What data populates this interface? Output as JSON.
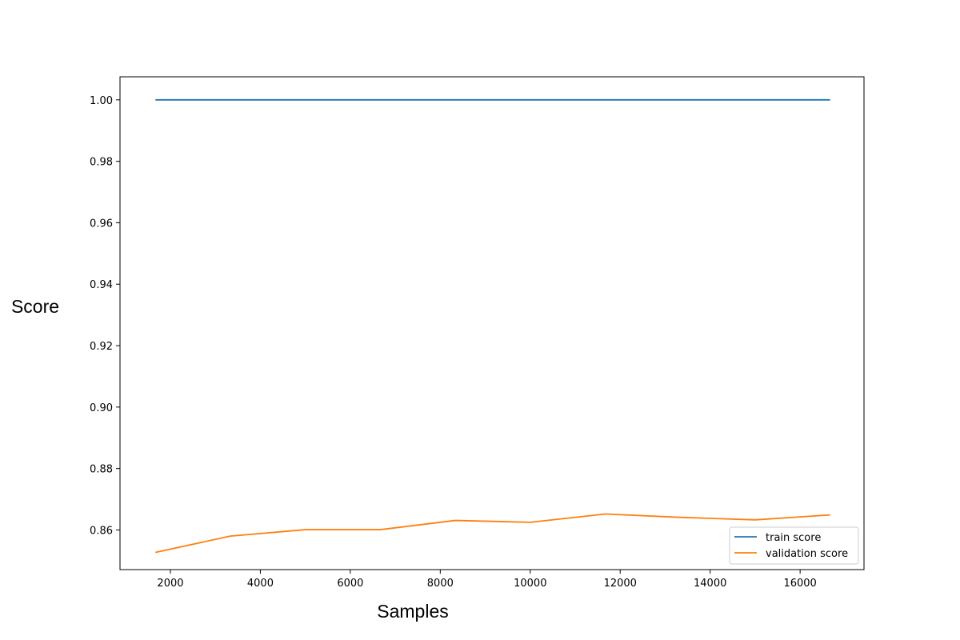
{
  "chart_data": {
    "type": "line",
    "title": "",
    "xlabel": "Samples",
    "ylabel": "Score",
    "xlim": [
      880,
      17420
    ],
    "ylim": [
      0.8471,
      1.0075
    ],
    "x_ticks": [
      2000,
      4000,
      6000,
      8000,
      10000,
      12000,
      14000,
      16000
    ],
    "y_ticks": [
      0.86,
      0.88,
      0.9,
      0.92,
      0.94,
      0.96,
      0.98,
      1.0
    ],
    "x_tick_labels": [
      "2000",
      "4000",
      "6000",
      "8000",
      "10000",
      "12000",
      "14000",
      "16000"
    ],
    "y_tick_labels": [
      "0.86",
      "0.88",
      "0.90",
      "0.92",
      "0.94",
      "0.96",
      "0.98",
      "1.00"
    ],
    "x": [
      1667,
      3333,
      5000,
      6667,
      8333,
      10000,
      11667,
      13333,
      15000,
      16667
    ],
    "series": [
      {
        "name": "train score",
        "color": "#1f77b4",
        "values": [
          1.0,
          1.0,
          1.0,
          1.0,
          1.0,
          1.0,
          1.0,
          1.0,
          1.0,
          1.0
        ]
      },
      {
        "name": "validation score",
        "color": "#ff7f0e",
        "values": [
          0.8527,
          0.858,
          0.8601,
          0.8601,
          0.8631,
          0.8625,
          0.8652,
          0.8641,
          0.8633,
          0.8649
        ]
      }
    ],
    "grid": false,
    "legend_position": "lower-right"
  }
}
